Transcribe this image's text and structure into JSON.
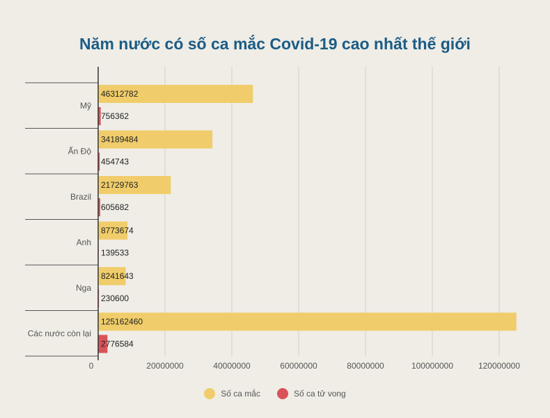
{
  "chart_data": {
    "type": "bar",
    "orientation": "horizontal",
    "title": "Năm nước có số ca mắc Covid-19 cao nhất thế giới",
    "categories": [
      "Mỹ",
      "Ấn Độ",
      "Brazil",
      "Anh",
      "Nga",
      "Các nước còn lại"
    ],
    "series": [
      {
        "name": "Số ca mắc",
        "color": "#f0cd6a",
        "values": [
          46312782,
          34189484,
          21729763,
          8773674,
          8241643,
          125162460
        ]
      },
      {
        "name": "Số ca tử vong",
        "color": "#d9535a",
        "values": [
          756362,
          454743,
          605682,
          139533,
          230600,
          2776584
        ]
      }
    ],
    "xlim": [
      0,
      130000000
    ],
    "xticks": [
      0,
      20000000,
      40000000,
      60000000,
      80000000,
      100000000,
      120000000
    ],
    "xtick_labels": [
      "0",
      "20000000",
      "40000000",
      "60000000",
      "80000000",
      "100000000",
      "120000000"
    ],
    "grid": true,
    "legend_position": "bottom"
  }
}
